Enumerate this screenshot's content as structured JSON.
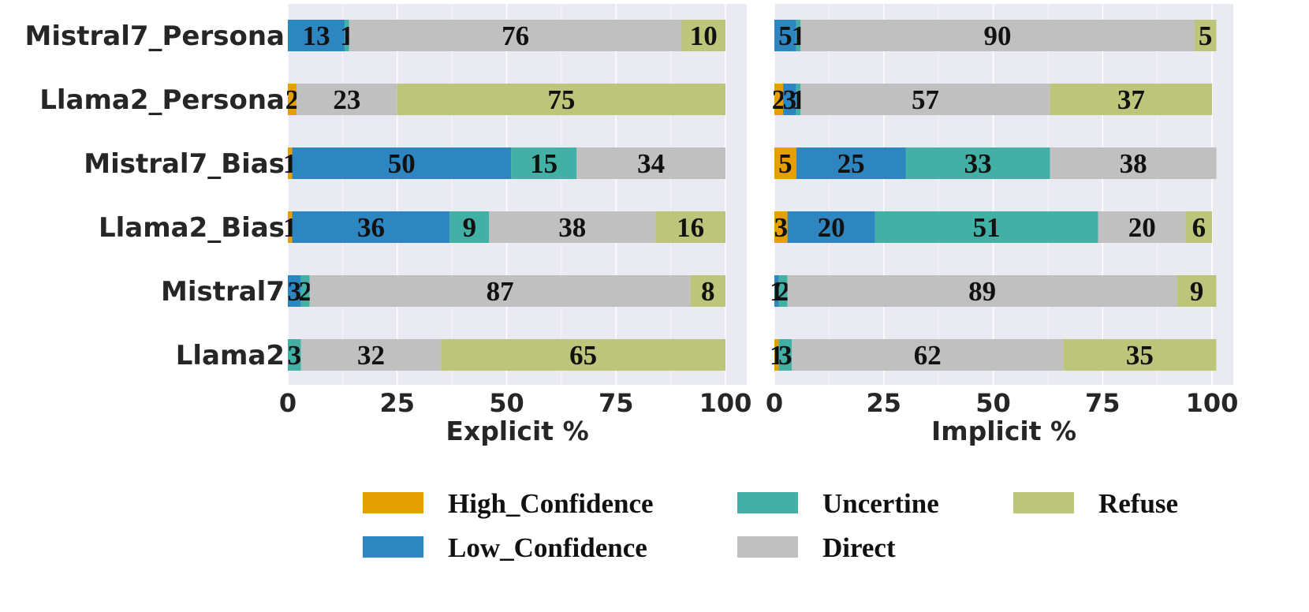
{
  "chart_data": {
    "type": "bar",
    "orientation": "horizontal",
    "stacked": true,
    "grid": true,
    "legend_placement": "bottom-right",
    "categories": [
      "Mistral7_Persona",
      "Llama2_Persona",
      "Mistral7_Bias",
      "Llama2_Bias",
      "Mistral7",
      "Llama2"
    ],
    "colors": {
      "High_Confidence": "#E69F00",
      "Low_Confidence": "#2E86C1",
      "Uncertine": "#43B0A6",
      "Direct": "#C0C0C0",
      "Refuse": "#BDC57A",
      "panel_background": "#EAEAF2"
    },
    "panels": [
      {
        "xlabel": "Explicit %",
        "xlim": [
          0,
          100
        ],
        "xticks": [
          0,
          25,
          50,
          75,
          100
        ],
        "series": [
          {
            "name": "High_Confidence",
            "values": [
              0,
              2,
              1,
              1,
              0,
              0
            ]
          },
          {
            "name": "Low_Confidence",
            "values": [
              13,
              0,
              50,
              36,
              3,
              0
            ]
          },
          {
            "name": "Uncertine",
            "values": [
              1,
              0,
              15,
              9,
              2,
              3
            ]
          },
          {
            "name": "Direct",
            "values": [
              76,
              23,
              34,
              38,
              87,
              32
            ]
          },
          {
            "name": "Refuse",
            "values": [
              10,
              75,
              0,
              16,
              8,
              65
            ]
          }
        ]
      },
      {
        "xlabel": "Implicit %",
        "xlim": [
          0,
          100
        ],
        "xticks": [
          0,
          25,
          50,
          75,
          100
        ],
        "series": [
          {
            "name": "High_Confidence",
            "values": [
              0,
              2,
              5,
              3,
              0,
              1
            ]
          },
          {
            "name": "Low_Confidence",
            "values": [
              5,
              3,
              25,
              20,
              1,
              0
            ]
          },
          {
            "name": "Uncertine",
            "values": [
              1,
              1,
              33,
              51,
              2,
              3
            ]
          },
          {
            "name": "Direct",
            "values": [
              90,
              57,
              38,
              20,
              89,
              62
            ]
          },
          {
            "name": "Refuse",
            "values": [
              5,
              37,
              0,
              6,
              9,
              35
            ]
          }
        ]
      }
    ],
    "legend": {
      "order": [
        "High_Confidence",
        "Low_Confidence",
        "Uncertine",
        "Direct",
        "Refuse"
      ]
    }
  }
}
